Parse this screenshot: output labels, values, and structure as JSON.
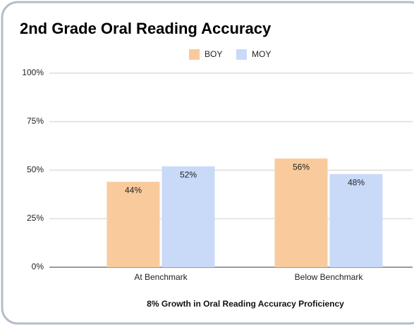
{
  "chart_data": {
    "type": "bar",
    "title": "2nd Grade Oral Reading Accuracy",
    "x_label": "8% Growth in Oral Reading Accuracy Proficiency",
    "categories": [
      "At Benchmark",
      "Below Benchmark"
    ],
    "series": [
      {
        "name": "BOY",
        "color": "#f9cb9c",
        "values": [
          44,
          56
        ],
        "value_labels": [
          "44%",
          "56%"
        ]
      },
      {
        "name": "MOY",
        "color": "#c9daf8",
        "values": [
          52,
          48
        ],
        "value_labels": [
          "52%",
          "48%"
        ]
      }
    ],
    "ylim": [
      0,
      100
    ],
    "yticks": [
      {
        "value": 0,
        "label": "0%"
      },
      {
        "value": 25,
        "label": "25%"
      },
      {
        "value": 50,
        "label": "50%"
      },
      {
        "value": 75,
        "label": "75%"
      },
      {
        "value": 100,
        "label": "100%"
      }
    ],
    "grid": true,
    "legend": "top"
  }
}
